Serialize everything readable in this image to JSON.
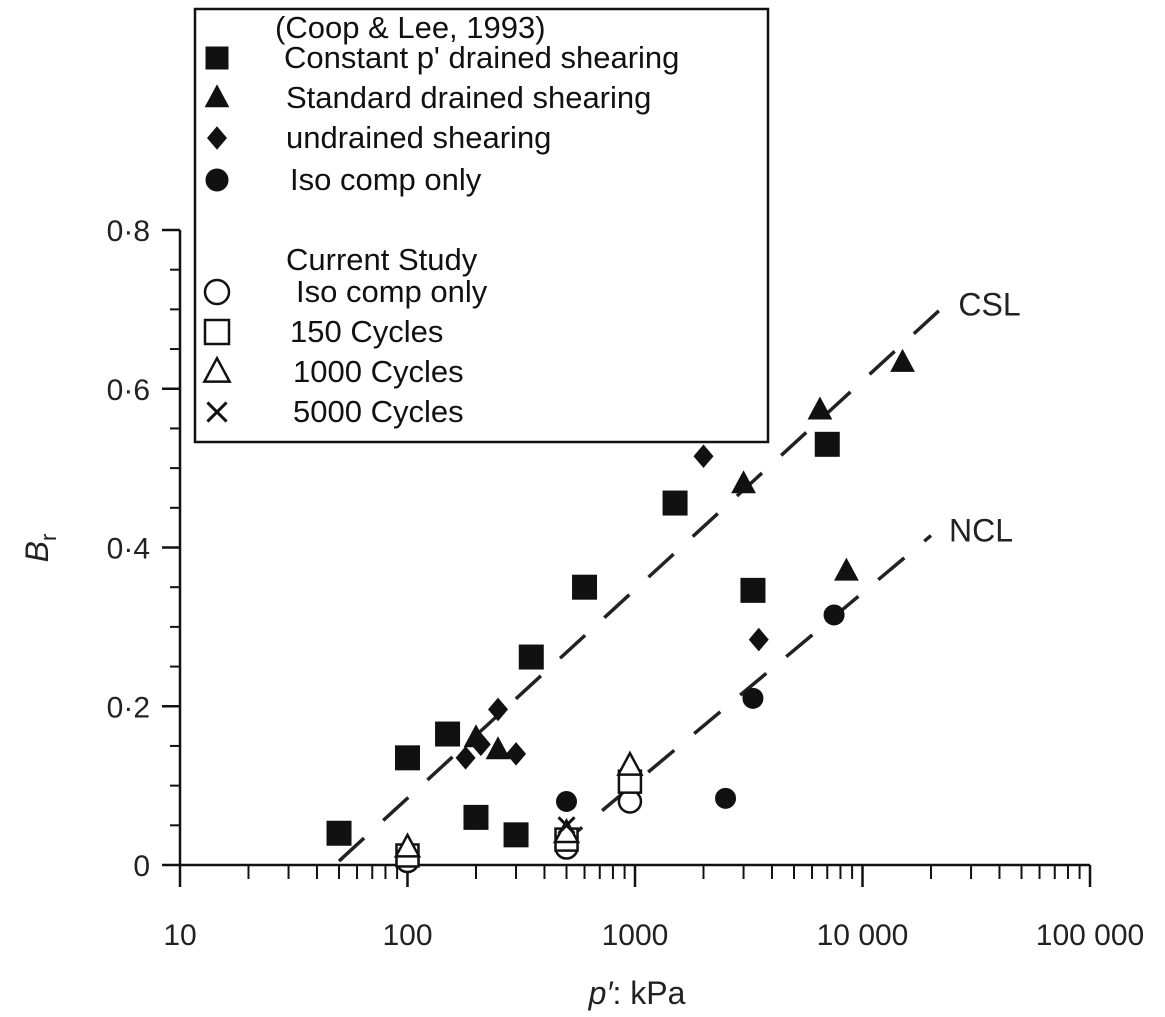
{
  "chart_data": {
    "type": "scatter",
    "xscale": "log",
    "xlabel_symbol": "p′",
    "xlabel_unit": ": kPa",
    "ylabel_symbol": "B",
    "ylabel_sub": "r",
    "xlim": [
      10,
      100000
    ],
    "ylim": [
      0,
      0.8
    ],
    "x_ticks": [
      {
        "value": 10,
        "label": "10"
      },
      {
        "value": 100,
        "label": "100"
      },
      {
        "value": 1000,
        "label": "1000"
      },
      {
        "value": 10000,
        "label": "10 000"
      },
      {
        "value": 100000,
        "label": "100 000"
      }
    ],
    "y_ticks": [
      {
        "value": 0,
        "label": "0"
      },
      {
        "value": 0.2,
        "label": "0·2"
      },
      {
        "value": 0.4,
        "label": "0·4"
      },
      {
        "value": 0.6,
        "label": "0·6"
      },
      {
        "value": 0.8,
        "label": "0·8"
      }
    ],
    "grid": false,
    "legend_position": "top-left",
    "legend": {
      "group1_title": "(Coop & Lee, 1993)",
      "group2_title": "Current Study"
    },
    "series": [
      {
        "name": "Constant p' drained shearing",
        "marker": "square",
        "filled": true,
        "points": [
          [
            50,
            0.04
          ],
          [
            100,
            0.135
          ],
          [
            150,
            0.165
          ],
          [
            200,
            0.06
          ],
          [
            300,
            0.038
          ],
          [
            350,
            0.262
          ],
          [
            600,
            0.35
          ],
          [
            1500,
            0.456
          ],
          [
            3300,
            0.346
          ],
          [
            7000,
            0.53
          ]
        ]
      },
      {
        "name": "Standard drained shearing",
        "marker": "triangle",
        "filled": true,
        "points": [
          [
            200,
            0.16
          ],
          [
            250,
            0.145
          ],
          [
            3000,
            0.48
          ],
          [
            6500,
            0.573
          ],
          [
            8500,
            0.37
          ],
          [
            15000,
            0.633
          ]
        ]
      },
      {
        "name": "undrained shearing",
        "marker": "diamond",
        "filled": true,
        "points": [
          [
            180,
            0.135
          ],
          [
            210,
            0.152
          ],
          [
            250,
            0.196
          ],
          [
            300,
            0.14
          ],
          [
            2000,
            0.515
          ],
          [
            3500,
            0.284
          ]
        ]
      },
      {
        "name": "Iso comp only",
        "marker": "circle",
        "filled": true,
        "points": [
          [
            500,
            0.08
          ],
          [
            2500,
            0.084
          ],
          [
            3300,
            0.21
          ],
          [
            7500,
            0.315
          ]
        ]
      },
      {
        "name": "Iso comp only",
        "marker": "circle",
        "filled": false,
        "points": [
          [
            100,
            0.005
          ],
          [
            500,
            0.022
          ],
          [
            950,
            0.08
          ]
        ]
      },
      {
        "name": "150 Cycles",
        "marker": "square",
        "filled": false,
        "points": [
          [
            100,
            0.012
          ],
          [
            500,
            0.032
          ],
          [
            950,
            0.105
          ]
        ]
      },
      {
        "name": "1000 Cycles",
        "marker": "triangle",
        "filled": false,
        "points": [
          [
            100,
            0.022
          ],
          [
            500,
            0.04
          ],
          [
            950,
            0.125
          ]
        ]
      },
      {
        "name": "5000 Cycles",
        "marker": "cross",
        "filled": false,
        "points": [
          [
            500,
            0.05
          ]
        ]
      }
    ],
    "lines": [
      {
        "name": "CSL",
        "style": "dashed",
        "points": [
          [
            50,
            0.005
          ],
          [
            22000,
            0.7
          ]
        ]
      },
      {
        "name": "NCL",
        "style": "dashed",
        "points": [
          [
            450,
            0.02
          ],
          [
            20000,
            0.415
          ]
        ]
      }
    ]
  }
}
